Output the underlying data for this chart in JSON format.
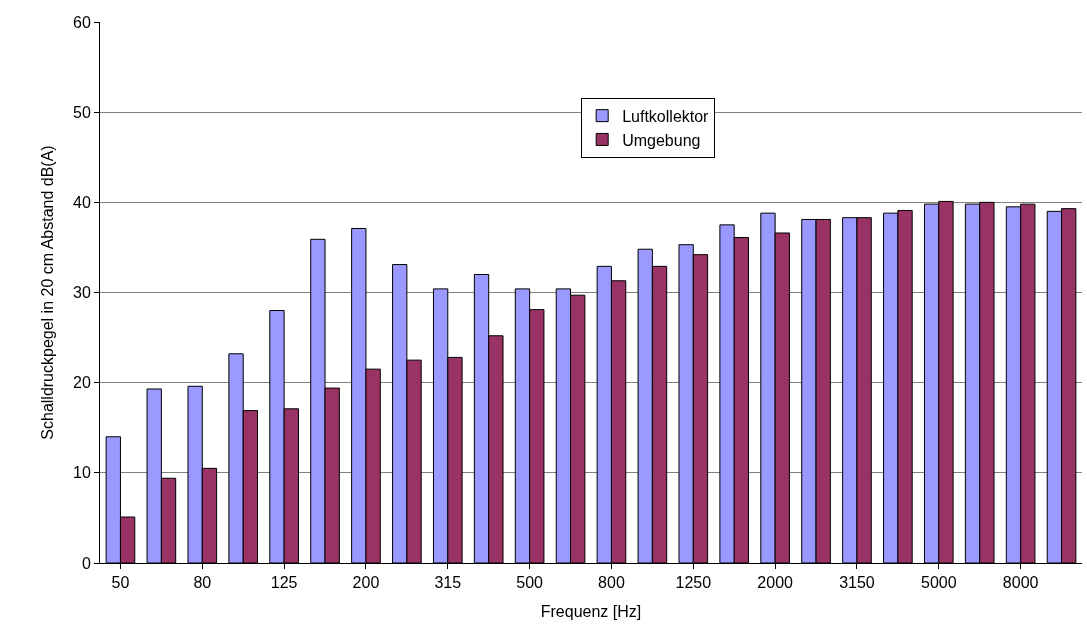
{
  "chart_data": {
    "type": "bar",
    "xlabel": "Frequenz [Hz]",
    "ylabel": "Schalldruckpegel in 20 cm Abstand dB(A)",
    "categories": [
      "50",
      null,
      "80",
      null,
      "125",
      null,
      "200",
      null,
      "315",
      null,
      "500",
      null,
      "800",
      null,
      "1250",
      null,
      "2000",
      null,
      "3150",
      null,
      "5000",
      null,
      "8000",
      null
    ],
    "series": [
      {
        "name": "Luftkollektor",
        "color": "#9999ff",
        "values": [
          14,
          19.3,
          19.6,
          23.2,
          28,
          35.9,
          37.1,
          33.1,
          30.4,
          32,
          30.4,
          30.4,
          32.9,
          34.8,
          35.3,
          37.5,
          38.8,
          38.1,
          38.3,
          38.8,
          39.8,
          39.8,
          39.5,
          39
        ]
      },
      {
        "name": "Umgebung",
        "color": "#993366",
        "values": [
          5.1,
          9.4,
          10.5,
          16.9,
          17.1,
          19.4,
          21.5,
          22.5,
          22.8,
          25.2,
          28.1,
          29.7,
          31.3,
          32.9,
          34.2,
          36.1,
          36.6,
          38.1,
          38.3,
          39.1,
          40.1,
          40,
          39.8,
          39.3
        ]
      }
    ],
    "ylim": [
      0,
      60
    ],
    "yticks": [
      0,
      10,
      20,
      30,
      40,
      50,
      60
    ],
    "grid": "y",
    "legend": "top"
  }
}
